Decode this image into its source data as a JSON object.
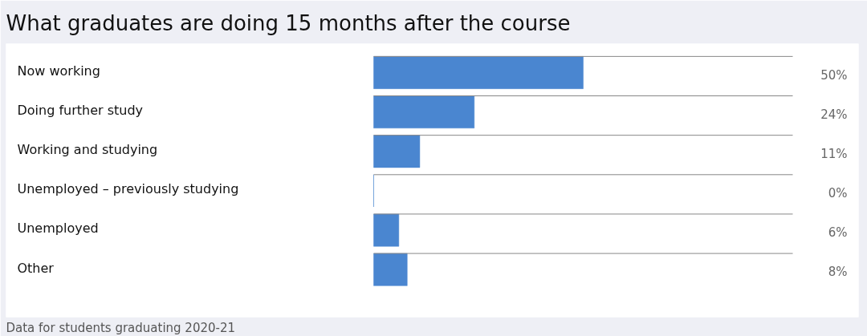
{
  "chart_data": {
    "type": "bar",
    "orientation": "horizontal",
    "title": "What graduates are doing 15 months after the course",
    "categories": [
      "Now working",
      "Doing further study",
      "Working and studying",
      "Unemployed – previously studying",
      "Unemployed",
      "Other"
    ],
    "values": [
      50,
      24,
      11,
      0,
      6,
      8
    ],
    "value_labels": [
      "50%",
      "24%",
      "11%",
      "0%",
      "6%",
      "8%"
    ],
    "color": "#4a86d0",
    "xlim": [
      0,
      100
    ],
    "tick_labels": "y",
    "annotations": [
      "Data for students graduating 2020-21"
    ]
  }
}
